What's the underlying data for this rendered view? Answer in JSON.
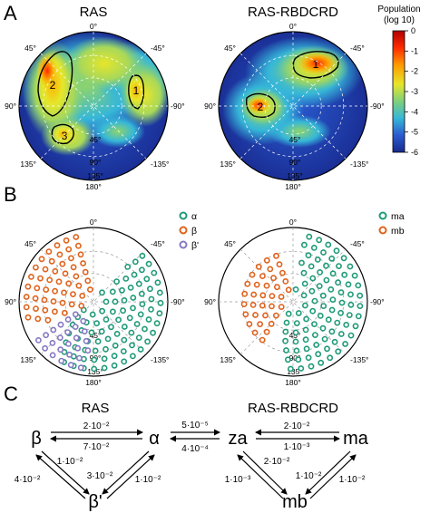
{
  "panels": {
    "A": {
      "letter": "A",
      "left_title": "RAS",
      "right_title": "RAS-RBDCRD",
      "colorbar": {
        "label_line1": "Population",
        "label_line2": "(log 10)",
        "ticks": [
          "0",
          "-1",
          "-2",
          "-3",
          "-4",
          "-5",
          "-6"
        ],
        "colors": [
          "#b00000",
          "#ff2a00",
          "#ff9a00",
          "#e6e62a",
          "#7fd07a",
          "#36b7d8",
          "#2a5bd0",
          "#182a8c"
        ]
      },
      "left_regions": [
        "2",
        "1",
        "3"
      ],
      "right_regions": [
        "1",
        "2"
      ]
    },
    "B": {
      "letter": "B",
      "left_legend": [
        {
          "symbol": "α",
          "color": "#1f9a78"
        },
        {
          "symbol": "β",
          "color": "#e0621c"
        },
        {
          "symbol": "β'",
          "color": "#8578c4"
        }
      ],
      "right_legend": [
        {
          "label": "ma",
          "color": "#1f9a78"
        },
        {
          "label": "mb",
          "color": "#e0621c"
        }
      ]
    },
    "C": {
      "letter": "C",
      "left_title": "RAS",
      "right_title": "RAS-RBDCRD",
      "left_states": {
        "beta": "β",
        "alpha": "α",
        "beta_prime": "β'"
      },
      "right_states": {
        "za": "za",
        "ma": "ma",
        "mb": "mb"
      },
      "left_rates": {
        "beta_to_alpha": "2·10⁻²",
        "alpha_to_beta": "7·10⁻²",
        "beta_prime_to_beta_a": "1·10⁻²",
        "beta_prime_to_beta_b": "4·10⁻²",
        "beta_to_beta_prime": "3·10⁻²",
        "alpha_beta_prime": "1·10⁻²"
      },
      "between_rates": {
        "forward": "5·10⁻⁵",
        "backward": "4·10⁻⁴"
      },
      "right_rates": {
        "ma_to_za": "2·10⁻²",
        "za_to_ma": "1·10⁻³",
        "mb_za_a": "2·10⁻²",
        "mb_za_b": "1·10⁻³",
        "ma_mb_a": "1·10⁻²",
        "ma_mb_b": "1·10⁻²"
      }
    }
  },
  "polar_labels": {
    "top": "0°",
    "bottom": "180°",
    "upper_left": "45°",
    "upper_right": "-45°",
    "left": "90°",
    "right": "-90°",
    "lower_left": "135°",
    "lower_right": "-135°",
    "inner_45": "45°",
    "inner_90": "90°",
    "inner_135": "135°"
  }
}
